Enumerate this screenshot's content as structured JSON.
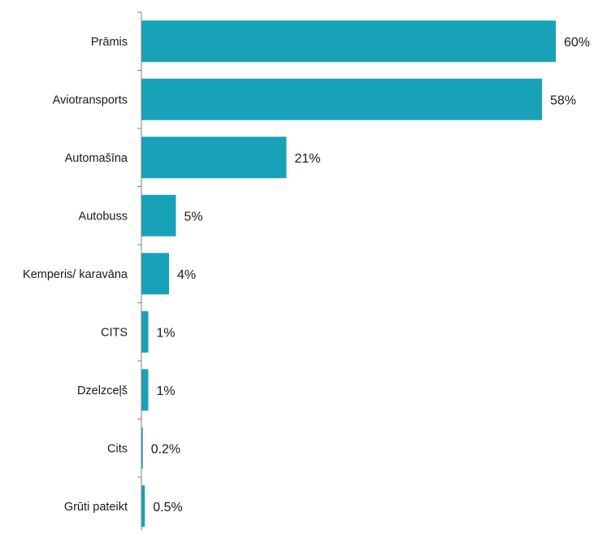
{
  "chart_data": {
    "type": "bar",
    "orientation": "horizontal",
    "title": "",
    "xlabel": "",
    "ylabel": "",
    "xlim": [
      0,
      60
    ],
    "grid": false,
    "legend": "none",
    "bar_color": "#17a2b8",
    "axis_color": "#808080",
    "categories": [
      "Prāmis",
      "Aviotransports",
      "Automašīna",
      "Autobuss",
      "Kemperis/ karavāna",
      "CITS",
      "Dzelzceļš",
      "Cits",
      "Grūti pateikt"
    ],
    "values": [
      60,
      58,
      21,
      5,
      4,
      1,
      1,
      0.2,
      0.5
    ],
    "data_labels": [
      "60%",
      "58%",
      "21%",
      "5%",
      "4%",
      "1%",
      "1%",
      "0.2%",
      "0.5%"
    ]
  }
}
